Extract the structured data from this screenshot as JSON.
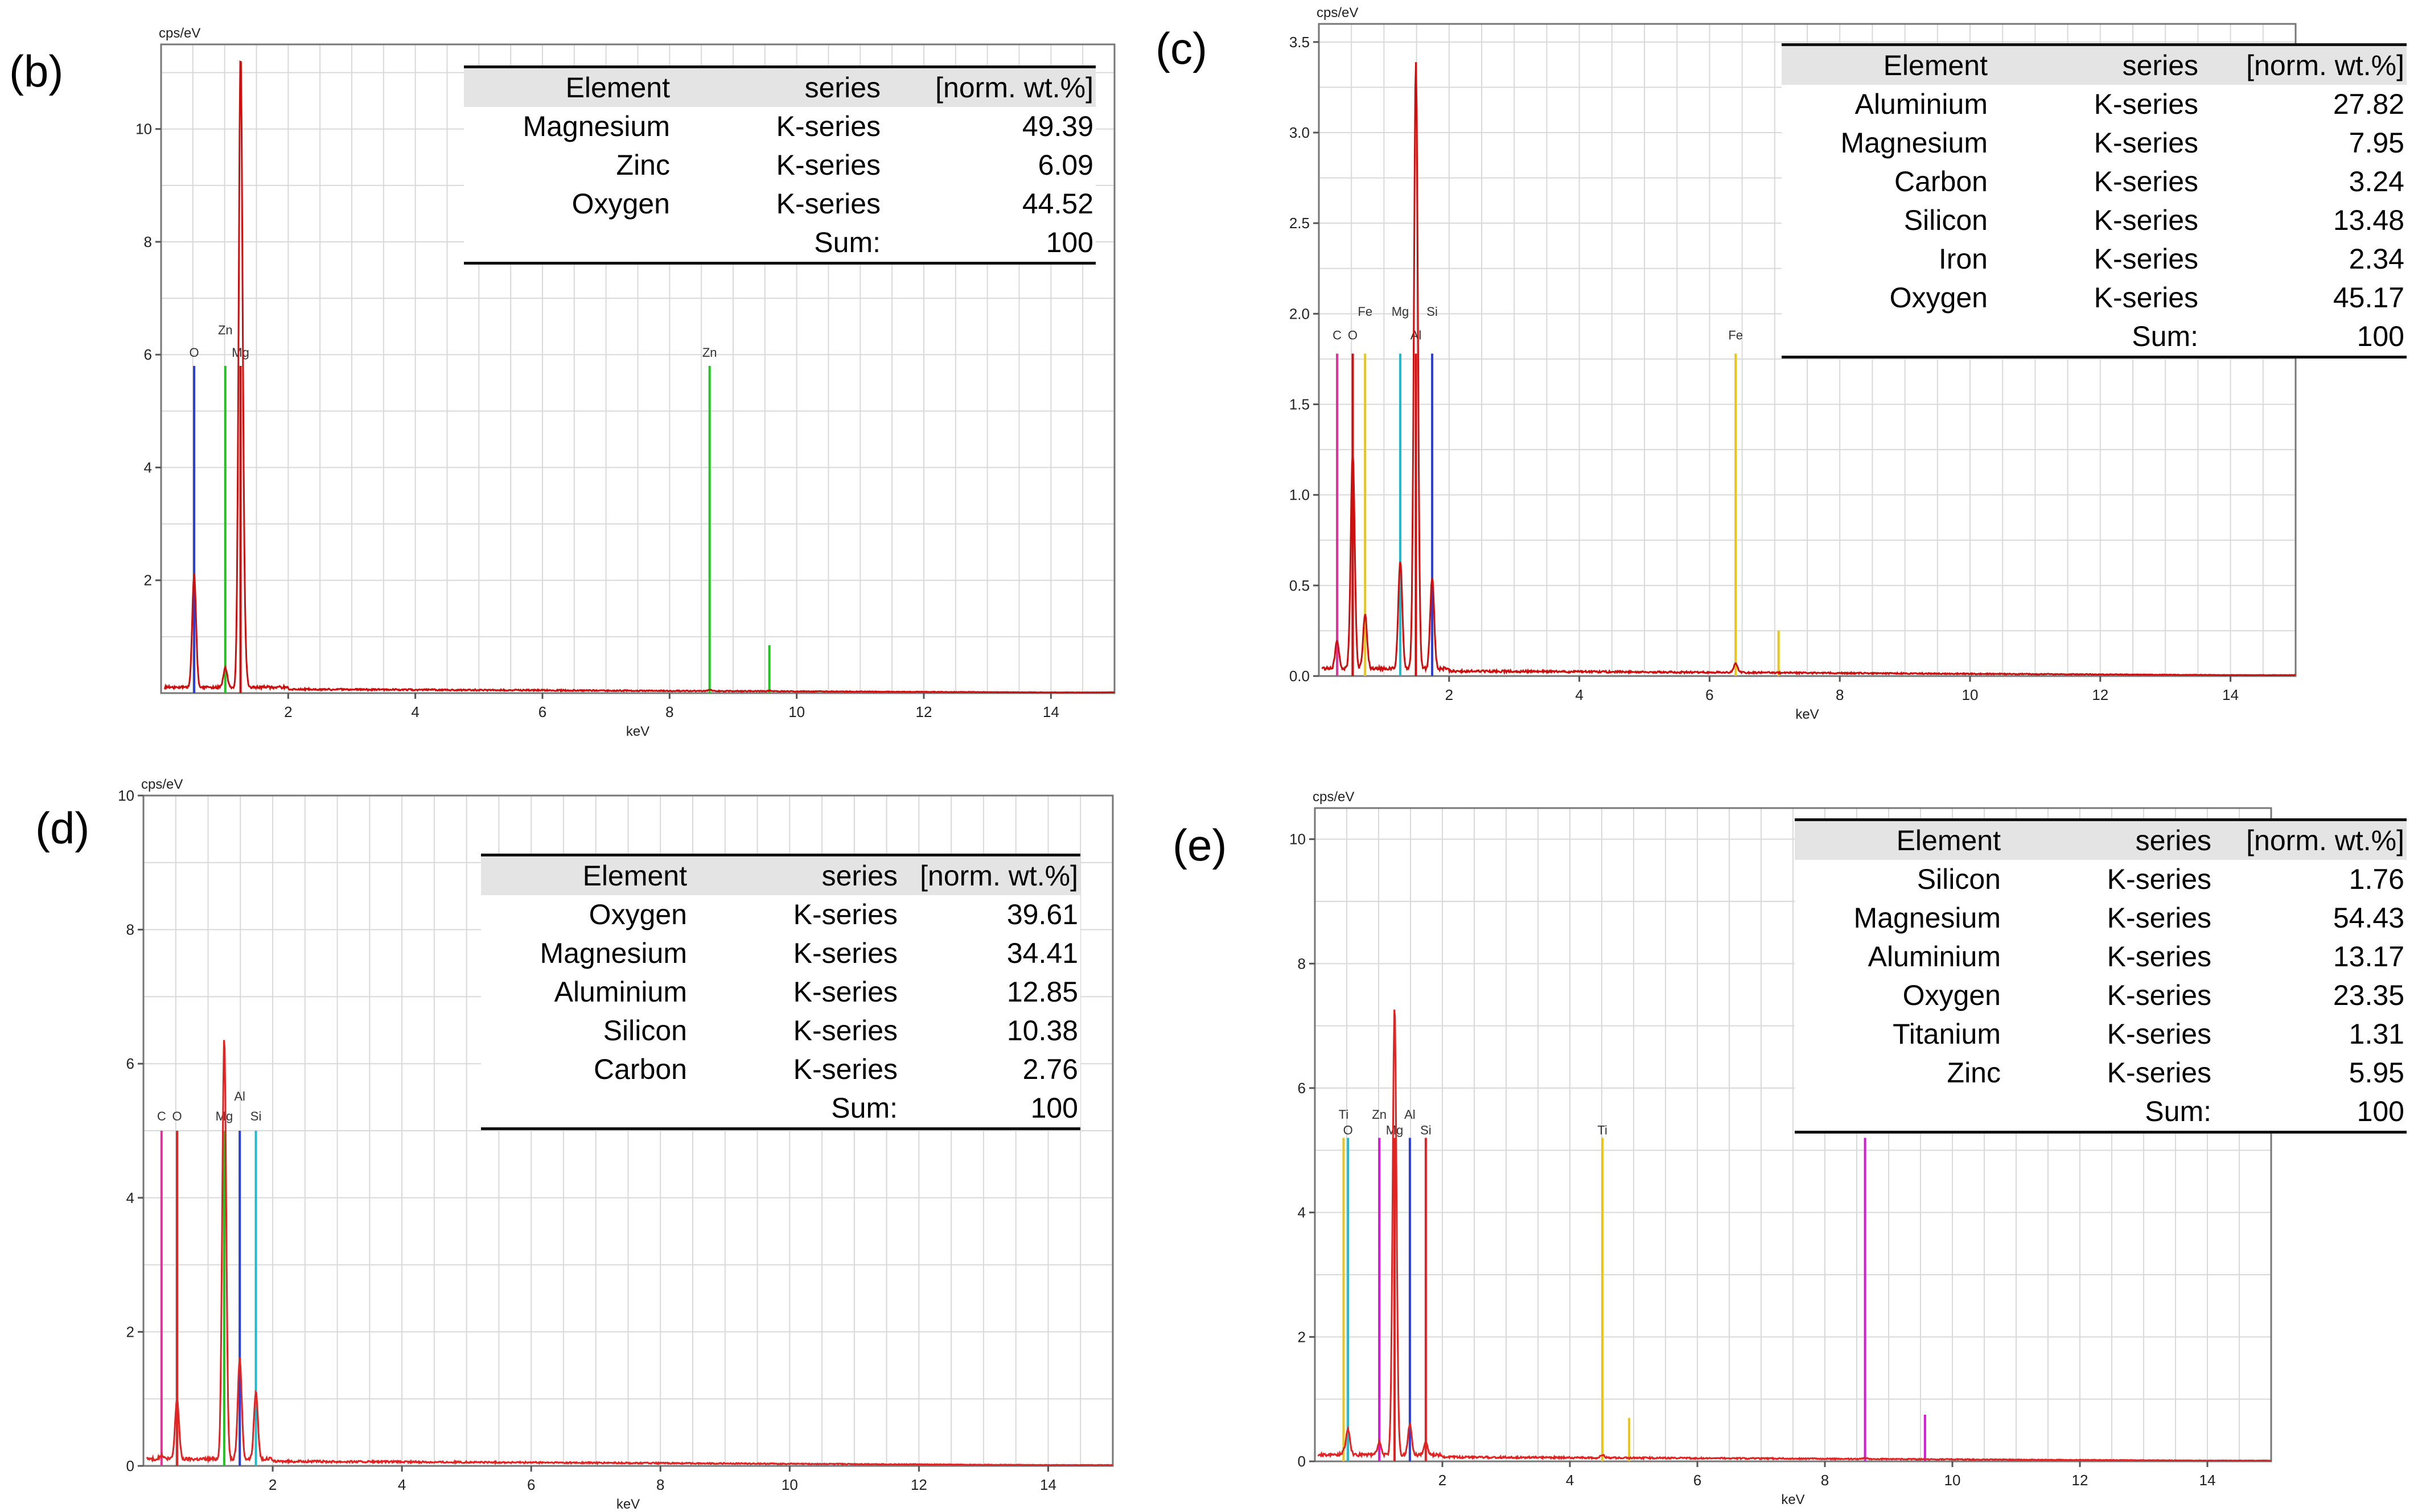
{
  "figure": {
    "panels": [
      {
        "label": "(b)",
        "table": {
          "headers": [
            "Element",
            "series",
            "[norm. wt.%]"
          ],
          "rows": [
            [
              "Magnesium",
              "K-series",
              "49.39"
            ],
            [
              "Zinc",
              "K-series",
              "6.09"
            ],
            [
              "Oxygen",
              "K-series",
              "44.52"
            ]
          ],
          "sum_label": "Sum:",
          "sum_value": "100"
        }
      },
      {
        "label": "(c)",
        "table": {
          "headers": [
            "Element",
            "series",
            "[norm. wt.%]"
          ],
          "rows": [
            [
              "Aluminium",
              "K-series",
              "27.82"
            ],
            [
              "Magnesium",
              "K-series",
              "7.95"
            ],
            [
              "Carbon",
              "K-series",
              "3.24"
            ],
            [
              "Silicon",
              "K-series",
              "13.48"
            ],
            [
              "Iron",
              "K-series",
              "2.34"
            ],
            [
              "Oxygen",
              "K-series",
              "45.17"
            ]
          ],
          "sum_label": "Sum:",
          "sum_value": "100"
        }
      },
      {
        "label": "(d)",
        "table": {
          "headers": [
            "Element",
            "series",
            "[norm. wt.%]"
          ],
          "rows": [
            [
              "Oxygen",
              "K-series",
              "39.61"
            ],
            [
              "Magnesium",
              "K-series",
              "34.41"
            ],
            [
              "Aluminium",
              "K-series",
              "12.85"
            ],
            [
              "Silicon",
              "K-series",
              "10.38"
            ],
            [
              "Carbon",
              "K-series",
              "2.76"
            ]
          ],
          "sum_label": "Sum:",
          "sum_value": "100"
        }
      },
      {
        "label": "(e)",
        "table": {
          "headers": [
            "Element",
            "series",
            "[norm. wt.%]"
          ],
          "rows": [
            [
              "Silicon",
              "K-series",
              "1.76"
            ],
            [
              "Magnesium",
              "K-series",
              "54.43"
            ],
            [
              "Aluminium",
              "K-series",
              "13.17"
            ],
            [
              "Oxygen",
              "K-series",
              "23.35"
            ],
            [
              "Titanium",
              "K-series",
              "1.31"
            ],
            [
              "Zinc",
              "K-series",
              "5.95"
            ]
          ],
          "sum_label": "Sum:",
          "sum_value": "100"
        }
      }
    ]
  },
  "chart_data": [
    {
      "type": "line",
      "panel": "(b)",
      "ylabel": "cps/eV",
      "xlabel": "keV",
      "xlim": [
        0,
        15
      ],
      "ylim": [
        0,
        11.5
      ],
      "xticks": [
        2,
        4,
        6,
        8,
        10,
        12,
        14
      ],
      "yticks": [
        2,
        4,
        6,
        8,
        10
      ],
      "spectrum": {
        "color": "#cc1010",
        "baseline": 0.05,
        "peaks": [
          [
            0.52,
            2.0
          ],
          [
            1.01,
            0.35
          ],
          [
            1.25,
            11.0
          ],
          [
            1.3,
            1.0
          ],
          [
            8.63,
            0.02
          ],
          [
            9.57,
            0.01
          ]
        ]
      },
      "lines": [
        {
          "element": "O",
          "x": 0.52,
          "height": 5.8,
          "color": "#2b3fd6",
          "label_height": 5.9
        },
        {
          "element": "Zn",
          "x": 1.01,
          "height": 5.8,
          "color": "#22c422",
          "label_height": 6.3
        },
        {
          "element": "Mg",
          "x": 1.25,
          "height": 5.8,
          "color": "#cc1010",
          "label_height": 5.9
        },
        {
          "element": "Zn",
          "x": 8.63,
          "height": 5.8,
          "color": "#22c422",
          "label_height": 5.9
        },
        {
          "element": "",
          "x": 9.57,
          "height": 0.85,
          "color": "#22c422",
          "label_height": 0
        }
      ]
    },
    {
      "type": "line",
      "panel": "(c)",
      "ylabel": "cps/eV",
      "xlabel": "keV",
      "xlim": [
        0,
        15
      ],
      "ylim": [
        0,
        3.6
      ],
      "xticks": [
        2,
        4,
        6,
        8,
        10,
        12,
        14
      ],
      "yticks": [
        0.0,
        0.5,
        1.0,
        1.5,
        2.0,
        2.5,
        3.0,
        3.5
      ],
      "ytick_labels": [
        "0.0",
        "0.5",
        "1.0",
        "1.5",
        "2.0",
        "2.5",
        "3.0",
        "3.5"
      ],
      "spectrum": {
        "color": "#cc1010",
        "baseline": 0.02,
        "peaks": [
          [
            0.28,
            0.15
          ],
          [
            0.52,
            1.2
          ],
          [
            0.71,
            0.3
          ],
          [
            1.25,
            0.6
          ],
          [
            1.49,
            3.35
          ],
          [
            1.74,
            0.5
          ],
          [
            6.4,
            0.05
          ]
        ]
      },
      "lines": [
        {
          "element": "C",
          "x": 0.28,
          "height": 1.78,
          "color": "#e0339a",
          "label_height": 1.84
        },
        {
          "element": "O",
          "x": 0.52,
          "height": 1.78,
          "color": "#cc1010",
          "label_height": 1.84
        },
        {
          "element": "Fe",
          "x": 0.71,
          "height": 1.78,
          "color": "#e8c51a",
          "label_height": 1.97
        },
        {
          "element": "Mg",
          "x": 1.25,
          "height": 1.78,
          "color": "#22b9c9",
          "label_height": 1.97
        },
        {
          "element": "Al",
          "x": 1.49,
          "height": 1.78,
          "color": "#cc1010",
          "label_height": 1.84
        },
        {
          "element": "Si",
          "x": 1.74,
          "height": 1.78,
          "color": "#2b3fd6",
          "label_height": 1.97
        },
        {
          "element": "Fe",
          "x": 6.4,
          "height": 1.78,
          "color": "#e8c51a",
          "label_height": 1.84
        },
        {
          "element": "",
          "x": 7.06,
          "height": 0.25,
          "color": "#e8c51a",
          "label_height": 0
        }
      ]
    },
    {
      "type": "line",
      "panel": "(d)",
      "ylabel": "cps/eV",
      "xlabel": "keV",
      "xlim": [
        0,
        15
      ],
      "ylim": [
        0,
        10
      ],
      "xticks": [
        2,
        4,
        6,
        8,
        10,
        12,
        14
      ],
      "yticks": [
        0,
        2,
        4,
        6,
        8,
        10
      ],
      "spectrum": {
        "color": "#e02424",
        "baseline": 0.05,
        "peaks": [
          [
            0.28,
            0.05
          ],
          [
            0.52,
            0.9
          ],
          [
            1.25,
            6.3
          ],
          [
            1.49,
            1.5
          ],
          [
            1.74,
            1.0
          ]
        ]
      },
      "lines": [
        {
          "element": "C",
          "x": 0.28,
          "height": 5.0,
          "color": "#e0339a",
          "label_height": 5.1
        },
        {
          "element": "O",
          "x": 0.52,
          "height": 5.0,
          "color": "#e02424",
          "label_height": 5.1
        },
        {
          "element": "Mg",
          "x": 1.25,
          "height": 5.0,
          "color": "#22c422",
          "label_height": 5.1
        },
        {
          "element": "Al",
          "x": 1.49,
          "height": 5.0,
          "color": "#2b3fd6",
          "label_height": 5.4
        },
        {
          "element": "Si",
          "x": 1.74,
          "height": 5.0,
          "color": "#22b9c9",
          "label_height": 5.1
        }
      ]
    },
    {
      "type": "line",
      "panel": "(e)",
      "ylabel": "cps/eV",
      "xlabel": "keV",
      "xlim": [
        0,
        15
      ],
      "ylim": [
        0,
        10.5
      ],
      "xticks": [
        2,
        4,
        6,
        8,
        10,
        12,
        14
      ],
      "yticks": [
        0,
        2,
        4,
        6,
        8,
        10
      ],
      "spectrum": {
        "color": "#e02424",
        "baseline": 0.05,
        "peaks": [
          [
            0.45,
            0.05
          ],
          [
            0.52,
            0.4
          ],
          [
            1.01,
            0.2
          ],
          [
            1.25,
            7.2
          ],
          [
            1.49,
            0.5
          ],
          [
            1.74,
            0.2
          ],
          [
            4.51,
            0.05
          ],
          [
            8.63,
            0.02
          ]
        ]
      },
      "lines": [
        {
          "element": "Ti",
          "x": 0.45,
          "height": 5.2,
          "color": "#e8c51a",
          "label_height": 5.45
        },
        {
          "element": "O",
          "x": 0.52,
          "height": 5.2,
          "color": "#22b9c9",
          "label_height": 5.2
        },
        {
          "element": "Zn",
          "x": 1.01,
          "height": 5.2,
          "color": "#d61bd6",
          "label_height": 5.45
        },
        {
          "element": "Mg",
          "x": 1.25,
          "height": 5.2,
          "color": "#e02424",
          "label_height": 5.2
        },
        {
          "element": "Al",
          "x": 1.49,
          "height": 5.2,
          "color": "#2b3fd6",
          "label_height": 5.45
        },
        {
          "element": "Si",
          "x": 1.74,
          "height": 5.2,
          "color": "#e02424",
          "label_height": 5.2
        },
        {
          "element": "Ti",
          "x": 4.51,
          "height": 5.2,
          "color": "#e8c51a",
          "label_height": 5.2
        },
        {
          "element": "",
          "x": 4.93,
          "height": 0.7,
          "color": "#e8c51a",
          "label_height": 0
        },
        {
          "element": "",
          "x": 8.63,
          "height": 5.2,
          "color": "#d61bd6",
          "label_height": 0
        },
        {
          "element": "",
          "x": 9.57,
          "height": 0.75,
          "color": "#d61bd6",
          "label_height": 0
        }
      ]
    }
  ]
}
